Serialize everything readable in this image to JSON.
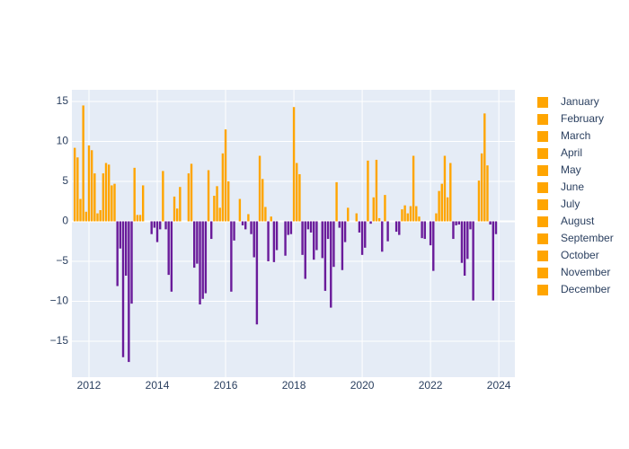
{
  "chart_data": {
    "type": "bar",
    "series": [
      {
        "name": "January",
        "color": "#FFA500",
        "negative_color": "#6A1B9A",
        "x": [
          2011,
          2012,
          2013,
          2014,
          2015,
          2016,
          2017,
          2018,
          2019,
          2020,
          2021,
          2022,
          2023
        ],
        "values": [
          null,
          9.5,
          -17.0,
          -2.6,
          7.2,
          11.5,
          8.2,
          14.3,
          -2.2,
          -4.2,
          -1.3,
          -3.0,
          -6.8
        ]
      },
      {
        "name": "February",
        "color": "#FFA500",
        "negative_color": "#6A1B9A",
        "x": [
          2011,
          2012,
          2013,
          2014,
          2015,
          2016,
          2017,
          2018,
          2019,
          2020,
          2021,
          2022,
          2023
        ],
        "values": [
          null,
          8.9,
          -6.8,
          -1.0,
          -5.8,
          5.0,
          5.3,
          7.3,
          -10.8,
          -3.3,
          -1.7,
          -6.2,
          -4.7
        ]
      },
      {
        "name": "March",
        "color": "#FFA500",
        "negative_color": "#6A1B9A",
        "x": [
          2011,
          2012,
          2013,
          2014,
          2015,
          2016,
          2017,
          2018,
          2019,
          2020,
          2021,
          2022,
          2023
        ],
        "values": [
          null,
          6.0,
          -17.6,
          6.3,
          -5.3,
          -8.8,
          1.8,
          5.9,
          -5.7,
          7.6,
          1.5,
          1.0,
          -1.0
        ]
      },
      {
        "name": "April",
        "color": "#FFA500",
        "negative_color": "#6A1B9A",
        "x": [
          2011,
          2012,
          2013,
          2014,
          2015,
          2016,
          2017,
          2018,
          2019,
          2020,
          2021,
          2022,
          2023
        ],
        "values": [
          null,
          1.0,
          -10.3,
          -1.0,
          -10.4,
          -2.4,
          -5.0,
          -4.2,
          4.9,
          -0.3,
          2.0,
          3.8,
          -9.9
        ]
      },
      {
        "name": "May",
        "color": "#FFA500",
        "negative_color": "#6A1B9A",
        "x": [
          2011,
          2012,
          2013,
          2014,
          2015,
          2016,
          2017,
          2018,
          2019,
          2020,
          2021,
          2022,
          2023
        ],
        "values": [
          null,
          1.4,
          6.7,
          -6.7,
          -9.7,
          null,
          0.6,
          -7.2,
          -0.8,
          3.0,
          1.0,
          4.7,
          null
        ]
      },
      {
        "name": "June",
        "color": "#FFA500",
        "negative_color": "#6A1B9A",
        "x": [
          2011,
          2012,
          2013,
          2014,
          2015,
          2016,
          2017,
          2018,
          2019,
          2020,
          2021,
          2022,
          2023
        ],
        "values": [
          null,
          6.0,
          0.8,
          -8.8,
          -9.0,
          2.8,
          -5.1,
          -1.0,
          -6.1,
          7.7,
          1.9,
          8.2,
          5.1
        ]
      },
      {
        "name": "July",
        "color": "#FFA500",
        "negative_color": "#6A1B9A",
        "x": [
          2011,
          2012,
          2013,
          2014,
          2015,
          2016,
          2017,
          2018,
          2019,
          2020,
          2021,
          2022,
          2023
        ],
        "values": [
          null,
          7.3,
          0.8,
          3.1,
          6.4,
          -0.5,
          -3.6,
          -1.4,
          -2.6,
          0.4,
          8.2,
          3.0,
          8.5
        ]
      },
      {
        "name": "August",
        "color": "#FFA500",
        "negative_color": "#6A1B9A",
        "x": [
          2011,
          2012,
          2013,
          2014,
          2015,
          2016,
          2017,
          2018,
          2019,
          2020,
          2021,
          2022,
          2023
        ],
        "values": [
          9.2,
          7.1,
          4.5,
          1.6,
          -2.2,
          -1.0,
          null,
          -4.8,
          1.7,
          -3.8,
          1.9,
          7.3,
          13.5
        ]
      },
      {
        "name": "September",
        "color": "#FFA500",
        "negative_color": "#6A1B9A",
        "x": [
          2011,
          2012,
          2013,
          2014,
          2015,
          2016,
          2017,
          2018,
          2019,
          2020,
          2021,
          2022,
          2023
        ],
        "values": [
          8.0,
          4.5,
          null,
          4.3,
          3.2,
          0.9,
          null,
          -3.6,
          null,
          3.3,
          0.6,
          -2.2,
          7.0
        ]
      },
      {
        "name": "October",
        "color": "#FFA500",
        "negative_color": "#6A1B9A",
        "x": [
          2011,
          2012,
          2013,
          2014,
          2015,
          2016,
          2017,
          2018,
          2019,
          2020,
          2021,
          2022,
          2023
        ],
        "values": [
          2.8,
          4.7,
          null,
          null,
          4.4,
          -1.6,
          -4.3,
          null,
          null,
          -2.5,
          -2.1,
          -0.5,
          -0.4
        ]
      },
      {
        "name": "November",
        "color": "#FFA500",
        "negative_color": "#6A1B9A",
        "x": [
          2011,
          2012,
          2013,
          2014,
          2015,
          2016,
          2017,
          2018,
          2019,
          2020,
          2021,
          2022,
          2023
        ],
        "values": [
          14.5,
          -8.1,
          -1.6,
          null,
          1.7,
          -4.5,
          -1.7,
          -4.6,
          1.0,
          null,
          -2.2,
          -0.4,
          -9.9
        ]
      },
      {
        "name": "December",
        "color": "#FFA500",
        "negative_color": "#6A1B9A",
        "x": [
          2011,
          2012,
          2013,
          2014,
          2015,
          2016,
          2017,
          2018,
          2019,
          2020,
          2021,
          2022,
          2023
        ],
        "values": [
          1.2,
          -3.4,
          -0.8,
          6.0,
          8.5,
          -12.9,
          -1.6,
          -8.7,
          -1.4,
          null,
          null,
          -5.2,
          -1.6
        ]
      }
    ],
    "xlim": [
      2011.5,
      2024.47
    ],
    "xticks": [
      2012,
      2014,
      2016,
      2018,
      2020,
      2022,
      2024
    ],
    "ylim": [
      -19.5,
      16.46
    ],
    "yticks": [
      {
        "value": -15,
        "label": "−15"
      },
      {
        "value": -10,
        "label": "−10"
      },
      {
        "value": -5,
        "label": "−5"
      },
      0,
      5,
      10,
      15
    ],
    "grid": true,
    "legend": "right"
  }
}
